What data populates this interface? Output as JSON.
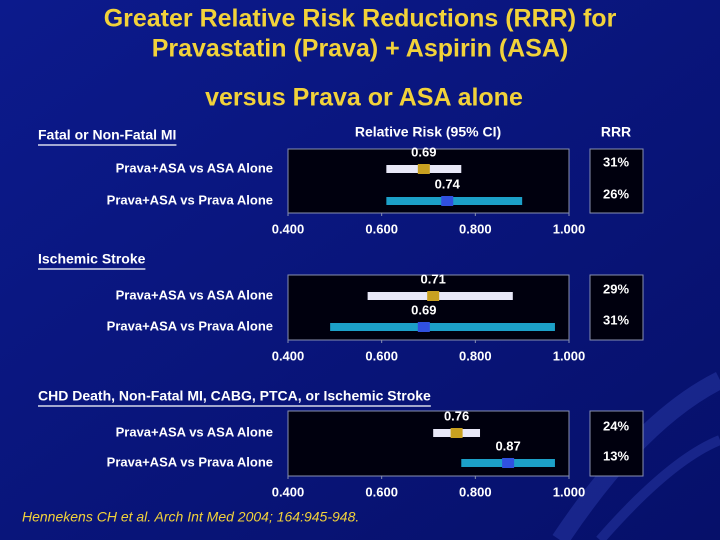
{
  "title_lines": [
    "Greater Relative Risk Reductions (RRR) for",
    "Pravastatin (Prava) + Aspirin (ASA)"
  ],
  "subtitle": "versus Prava or ASA alone",
  "columns": {
    "risk": "Relative Risk (95% CI)",
    "rrr": "RRR"
  },
  "citation": "Hennekens CH et al. Arch Int Med 2004; 164:945-948.",
  "chart_data": [
    {
      "type": "forest",
      "title": "Fatal or Non-Fatal MI",
      "categories": [
        "Prava+ASA vs ASA Alone",
        "Prava+ASA vs Prava Alone"
      ],
      "values": [
        0.69,
        0.74
      ],
      "ci_low": [
        0.61,
        0.61
      ],
      "ci_high": [
        0.77,
        0.9
      ],
      "rrr": {
        "values": [
          31,
          26
        ],
        "value_labels": [
          "31%",
          "26%"
        ]
      },
      "bar_colors": [
        "#e8e8f8",
        "#1ca0c8"
      ],
      "marker_colors": [
        "#c8a020",
        "#3050e0"
      ],
      "xlim": [
        0.4,
        1.0
      ],
      "xticks": [
        {
          "value": 0.4,
          "label": "0.400"
        },
        {
          "value": 0.6,
          "label": "0.600"
        },
        {
          "value": 0.8,
          "label": "0.800"
        },
        {
          "value": 1.0,
          "label": "1.000"
        }
      ]
    },
    {
      "type": "forest",
      "title": "Ischemic Stroke",
      "categories": [
        "Prava+ASA vs ASA Alone",
        "Prava+ASA vs Prava Alone"
      ],
      "values": [
        0.71,
        0.69
      ],
      "ci_low": [
        0.57,
        0.49
      ],
      "ci_high": [
        0.88,
        0.97
      ],
      "rrr": {
        "values": [
          29,
          31
        ],
        "value_labels": [
          "29%",
          "31%"
        ]
      },
      "bar_colors": [
        "#e8e8f8",
        "#1ca0c8"
      ],
      "marker_colors": [
        "#c8a020",
        "#3050e0"
      ],
      "xlim": [
        0.4,
        1.0
      ],
      "xticks": [
        {
          "value": 0.4,
          "label": "0.400"
        },
        {
          "value": 0.6,
          "label": "0.600"
        },
        {
          "value": 0.8,
          "label": "0.800"
        },
        {
          "value": 1.0,
          "label": "1.000"
        }
      ]
    },
    {
      "type": "forest",
      "title": "CHD Death, Non-Fatal MI, CABG, PTCA, or Ischemic Stroke",
      "categories": [
        "Prava+ASA vs ASA Alone",
        "Prava+ASA vs Prava Alone"
      ],
      "values": [
        0.76,
        0.87
      ],
      "ci_low": [
        0.71,
        0.77
      ],
      "ci_high": [
        0.81,
        0.97
      ],
      "rrr": {
        "values": [
          24,
          13
        ],
        "value_labels": [
          "24%",
          "13%"
        ]
      },
      "bar_colors": [
        "#e8e8f8",
        "#1ca0c8"
      ],
      "marker_colors": [
        "#c8a020",
        "#3050e0"
      ],
      "xlim": [
        0.4,
        1.0
      ],
      "xticks": [
        {
          "value": 0.4,
          "label": "0.400"
        },
        {
          "value": 0.6,
          "label": "0.600"
        },
        {
          "value": 0.8,
          "label": "0.800"
        },
        {
          "value": 1.0,
          "label": "1.000"
        }
      ]
    }
  ]
}
